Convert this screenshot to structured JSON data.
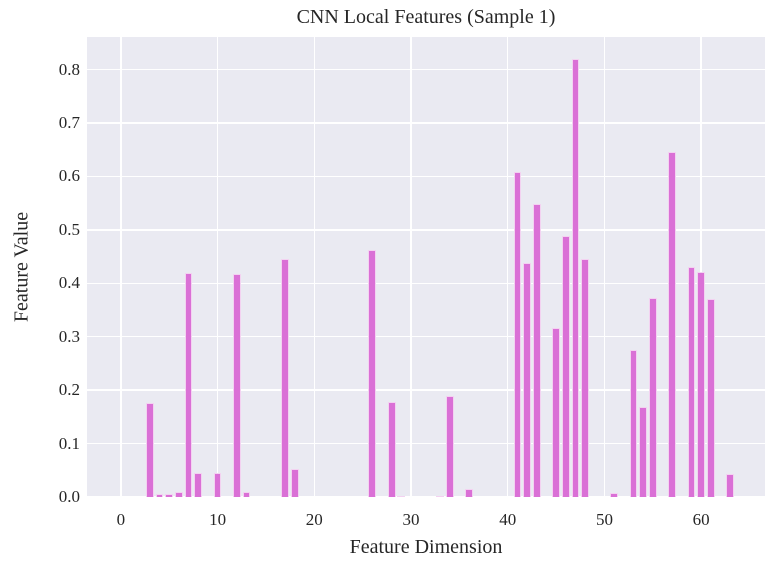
{
  "chart_data": {
    "type": "bar",
    "title": "CNN Local Features (Sample 1)",
    "xlabel": "Feature Dimension",
    "ylabel": "Feature Value",
    "xlim": [
      -3.5,
      66.6
    ],
    "ylim": [
      0,
      0.861
    ],
    "xticks": [
      0,
      10,
      20,
      30,
      40,
      50,
      60
    ],
    "xtick_labels": [
      "0",
      "10",
      "20",
      "30",
      "40",
      "50",
      "60"
    ],
    "yticks": [
      0.0,
      0.1,
      0.2,
      0.3,
      0.4,
      0.5,
      0.6,
      0.7,
      0.8
    ],
    "ytick_labels": [
      "0.0",
      "0.1",
      "0.2",
      "0.3",
      "0.4",
      "0.5",
      "0.6",
      "0.7",
      "0.8"
    ],
    "grid": true,
    "legend": null,
    "bar_color": "#da70d6",
    "background_color": "#eaeaf2",
    "categories": [
      0,
      1,
      2,
      3,
      4,
      5,
      6,
      7,
      8,
      9,
      10,
      11,
      12,
      13,
      14,
      15,
      16,
      17,
      18,
      19,
      20,
      21,
      22,
      23,
      24,
      25,
      26,
      27,
      28,
      29,
      30,
      31,
      32,
      33,
      34,
      35,
      36,
      37,
      38,
      39,
      40,
      41,
      42,
      43,
      44,
      45,
      46,
      47,
      48,
      49,
      50,
      51,
      52,
      53,
      54,
      55,
      56,
      57,
      58,
      59,
      60,
      61,
      62,
      63
    ],
    "values": [
      0,
      0,
      0,
      0.176,
      0.005,
      0.005,
      0.01,
      0.419,
      0.045,
      0,
      0.045,
      0,
      0.417,
      0.01,
      0,
      0,
      0,
      0.445,
      0.053,
      0,
      0,
      0,
      0,
      0,
      0,
      0,
      0.462,
      0,
      0.178,
      0.002,
      0,
      0,
      0,
      0.002,
      0.19,
      0,
      0.015,
      0,
      0,
      0,
      0,
      0.609,
      0.438,
      0.548,
      0,
      0.316,
      0.488,
      0.819,
      0.445,
      0,
      0,
      0.007,
      0,
      0.276,
      0.168,
      0.372,
      0,
      0.645,
      0,
      0.43,
      0.421,
      0.37,
      0,
      0.044
    ]
  }
}
